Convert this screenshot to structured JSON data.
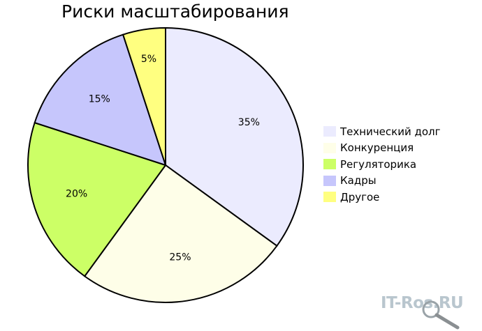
{
  "chart_data": {
    "type": "pie",
    "title": "Риски масштабирования",
    "categories": [
      "Технический долг",
      "Конкуренция",
      "Регуляторика",
      "Кадры",
      "Другое"
    ],
    "values": [
      35,
      25,
      20,
      15,
      5
    ],
    "value_labels": [
      "35%",
      "25%",
      "20%",
      "15%",
      "5%"
    ],
    "colors": [
      "#ebebfe",
      "#fefee8",
      "#ccff66",
      "#c6c6fc",
      "#ffff80"
    ],
    "legend": "right",
    "start_angle_deg": 0,
    "direction": "clockwise"
  },
  "watermark": {
    "text": "IT-Ros.RU",
    "icon": "magnifier-icon"
  }
}
